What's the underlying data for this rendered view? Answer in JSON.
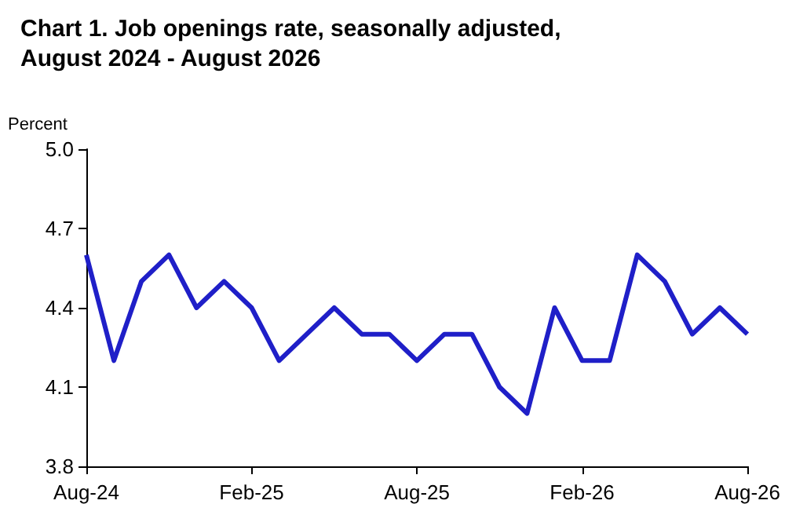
{
  "chart_data": {
    "type": "line",
    "title": "Chart 1. Job openings rate, seasonally adjusted, August 2024 - August 2026",
    "ylabel": "Percent",
    "categories": [
      "Aug-24",
      null,
      null,
      null,
      null,
      null,
      "Feb-25",
      null,
      null,
      null,
      null,
      null,
      "Aug-25",
      null,
      null,
      null,
      null,
      null,
      "Feb-26",
      null,
      null,
      null,
      null,
      null,
      "Aug-26"
    ],
    "series": [
      {
        "color": "#1f1fc8",
        "values": [
          4.6,
          4.2,
          4.5,
          4.6,
          4.4,
          4.5,
          4.4,
          4.2,
          4.3,
          4.4,
          4.3,
          4.3,
          4.2,
          4.3,
          4.3,
          4.1,
          4.0,
          4.4,
          4.2,
          4.2,
          4.6,
          4.5,
          4.3,
          4.4,
          4.3
        ]
      }
    ],
    "ylim": [
      3.8,
      5.0
    ],
    "yticks": [
      3.8,
      4.1,
      4.4,
      4.7,
      {
        "value": 5.0,
        "label": "5.0"
      }
    ],
    "grid": false,
    "marker": "none",
    "line_style": "solid"
  }
}
